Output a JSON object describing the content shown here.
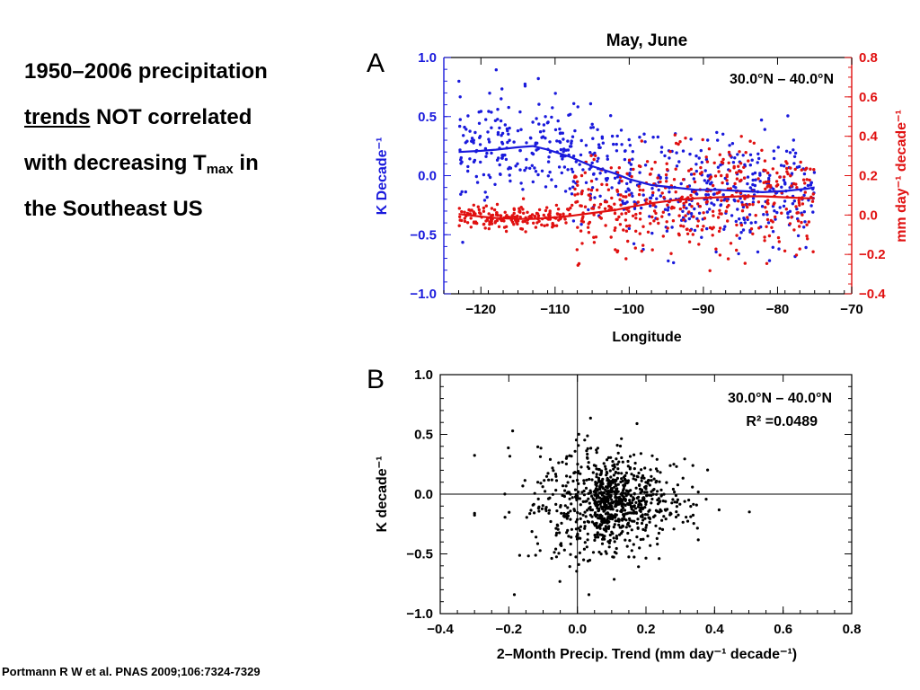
{
  "headline": {
    "line1": "1950–2006 precipitation",
    "line2_underlined": "trends",
    "line2_rest": " NOT correlated",
    "line3_pre": "with decreasing T",
    "line3_sub": "max",
    "line3_post": " in",
    "line4": "the Southeast US"
  },
  "citation": "Portmann R W et al. PNAS 2009;106:7324-7329",
  "colors": {
    "blue": "#1a1adc",
    "red": "#e01010",
    "black": "#000000"
  },
  "chart_data": [
    {
      "panel": "A",
      "type": "scatter",
      "title": "May, June",
      "annotation": "30.0°N – 40.0°N",
      "xlabel": "Longitude",
      "xlim": [
        -125,
        -70
      ],
      "xticks": [
        "−120",
        "−110",
        "−100",
        "−90",
        "−80",
        "−70"
      ],
      "ylabel_left": "K Decade⁻¹",
      "ylim_left": [
        -1.0,
        1.0
      ],
      "yticks_left": [
        "1.0",
        "0.5",
        "0.0",
        "−0.5",
        "−1.0"
      ],
      "ylabel_right": "mm day⁻¹ decade⁻¹",
      "ylim_right": [
        -0.4,
        0.8
      ],
      "yticks_right": [
        "0.8",
        "0.6",
        "0.4",
        "0.2",
        "0.0",
        "−0.2",
        "−0.4"
      ],
      "series": [
        {
          "axis": "left",
          "color": "#1a1adc",
          "smooth_line": {
            "x": [
              -123,
              -120,
              -118,
              -115,
              -113,
              -111,
              -108,
              -105,
              -102,
              -100,
              -97,
              -94,
              -91,
              -88,
              -85,
              -82,
              -79,
              -76,
              -75
            ],
            "y": [
              0.2,
              0.21,
              0.22,
              0.24,
              0.25,
              0.22,
              0.16,
              0.08,
              0.02,
              -0.03,
              -0.08,
              -0.1,
              -0.12,
              -0.12,
              -0.13,
              -0.14,
              -0.13,
              -0.11,
              -0.1
            ]
          },
          "scatter_spread": 0.22,
          "scatter_count": 620
        },
        {
          "axis": "right",
          "color": "#e01010",
          "smooth_line": {
            "x": [
              -123,
              -120,
              -118,
              -115,
              -113,
              -111,
              -108,
              -105,
              -102,
              -100,
              -97,
              -94,
              -91,
              -88,
              -85,
              -82,
              -79,
              -76,
              -75
            ],
            "y": [
              0.005,
              -0.008,
              -0.015,
              -0.02,
              -0.02,
              -0.015,
              -0.005,
              0.01,
              0.025,
              0.04,
              0.06,
              0.075,
              0.085,
              0.09,
              0.095,
              0.095,
              0.09,
              0.085,
              0.085
            ]
          },
          "scatter_spread": 0.13,
          "scatter_count": 620
        }
      ]
    },
    {
      "panel": "B",
      "type": "scatter",
      "annotation": "30.0°N – 40.0°N",
      "stat": "R² =0.0489",
      "xlabel": "2–Month Precip. Trend (mm day⁻¹ decade⁻¹)",
      "xlim": [
        -0.4,
        0.8
      ],
      "xticks": [
        "−0.4",
        "−0.2",
        "0.0",
        "0.2",
        "0.4",
        "0.6",
        "0.8"
      ],
      "ylabel": "K decade⁻¹",
      "ylim": [
        -1.0,
        1.0
      ],
      "yticks": [
        "1.0",
        "0.5",
        "0.0",
        "−0.5",
        "−1.0"
      ],
      "zero_lines": true,
      "r_squared": 0.0489,
      "point_count": 900,
      "x_mean": 0.05,
      "x_sd": 0.11,
      "y_mean": -0.08,
      "y_sd": 0.22
    }
  ]
}
